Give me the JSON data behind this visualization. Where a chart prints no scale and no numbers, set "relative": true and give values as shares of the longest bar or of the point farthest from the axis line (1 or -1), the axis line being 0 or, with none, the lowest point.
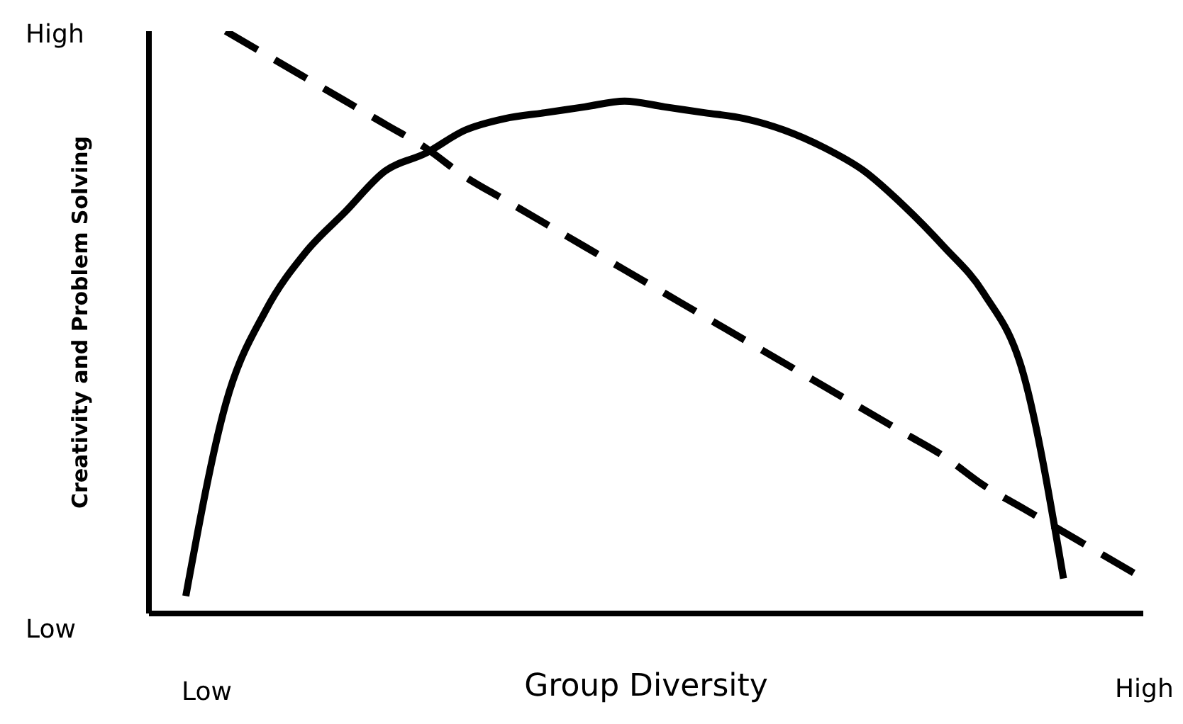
{
  "chart_data": {
    "type": "line",
    "xlabel": "Group Diversity",
    "ylabel": "Creativity and Problem Solving",
    "relative": true,
    "annotations": [
      "High",
      "Low",
      "Low",
      "High"
    ],
    "categories": [
      null,
      null,
      null,
      null,
      null,
      null,
      null,
      null,
      null,
      null,
      null,
      null,
      null,
      null,
      null,
      null,
      null,
      null,
      null,
      null,
      null,
      null,
      null,
      null,
      null
    ],
    "marker": "none",
    "series": [
      {
        "color": "#000000",
        "line_style": "solid",
        "values": [
          0.03,
          0.36,
          0.52,
          0.62,
          0.69,
          0.76,
          0.79,
          0.83,
          0.85,
          0.86,
          0.87,
          0.88,
          0.87,
          0.86,
          0.85,
          0.83,
          0.8,
          0.76,
          0.7,
          0.63,
          0.55,
          0.41,
          0.06,
          null,
          null
        ]
      },
      {
        "color": "#000000",
        "line_style": "dashed",
        "values": [
          null,
          1,
          0.96,
          0.92,
          0.88,
          0.84,
          0.8,
          0.75,
          0.71,
          0.67,
          0.63,
          0.59,
          0.55,
          0.51,
          0.47,
          0.43,
          0.39,
          0.35,
          0.31,
          0.27,
          0.22,
          0.18,
          0.14,
          0.1,
          0.06
        ]
      }
    ]
  }
}
